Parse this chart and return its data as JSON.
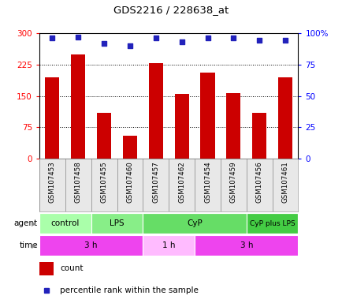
{
  "title": "GDS2216 / 228638_at",
  "samples": [
    "GSM107453",
    "GSM107458",
    "GSM107455",
    "GSM107460",
    "GSM107457",
    "GSM107462",
    "GSM107454",
    "GSM107459",
    "GSM107456",
    "GSM107461"
  ],
  "counts": [
    195,
    248,
    110,
    55,
    228,
    155,
    205,
    157,
    110,
    195
  ],
  "percentiles": [
    96,
    97,
    92,
    90,
    96,
    93,
    96,
    96,
    94,
    94
  ],
  "ylim_left": [
    0,
    300
  ],
  "ylim_right": [
    0,
    100
  ],
  "yticks_left": [
    0,
    75,
    150,
    225,
    300
  ],
  "ytick_labels_left": [
    "0",
    "75",
    "150",
    "225",
    "300"
  ],
  "yticks_right": [
    0,
    25,
    50,
    75,
    100
  ],
  "ytick_labels_right": [
    "0",
    "25",
    "50",
    "75",
    "100%"
  ],
  "bar_color": "#cc0000",
  "scatter_color": "#2222bb",
  "agent_groups": [
    {
      "label": "control",
      "start": 0,
      "end": 2,
      "color": "#aaffaa"
    },
    {
      "label": "LPS",
      "start": 2,
      "end": 4,
      "color": "#88ee88"
    },
    {
      "label": "CyP",
      "start": 4,
      "end": 8,
      "color": "#66dd66"
    },
    {
      "label": "CyP plus LPS",
      "start": 8,
      "end": 10,
      "color": "#44cc44"
    }
  ],
  "time_groups": [
    {
      "label": "3 h",
      "start": 0,
      "end": 4,
      "color": "#ee44ee"
    },
    {
      "label": "1 h",
      "start": 4,
      "end": 6,
      "color": "#ffbbff"
    },
    {
      "label": "3 h",
      "start": 6,
      "end": 10,
      "color": "#ee44ee"
    }
  ],
  "tick_label_fontsize": 7.5,
  "bar_width": 0.55
}
